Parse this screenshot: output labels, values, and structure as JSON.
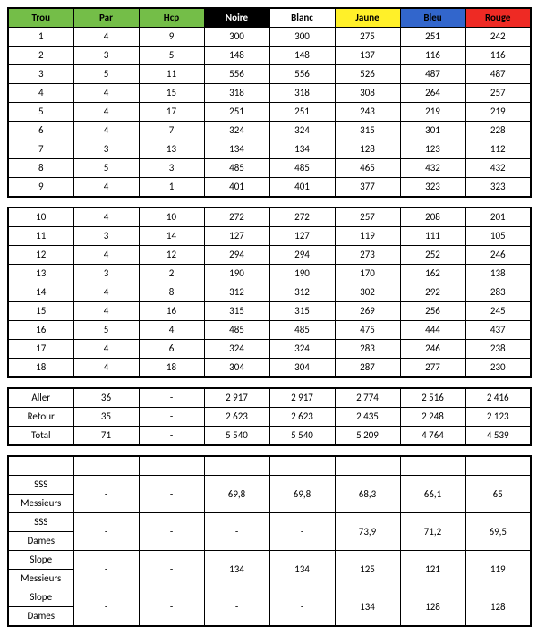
{
  "colors": {
    "green": "#74be48",
    "black": "#000000",
    "white": "#ffffff",
    "yellow": "#fff029",
    "blue": "#3266cc",
    "red": "#ee2a24"
  },
  "headers": {
    "trou": "Trou",
    "par": "Par",
    "hcp": "Hcp",
    "noire": "Noire",
    "blanc": "Blanc",
    "jaune": "Jaune",
    "bleu": "Bleu",
    "rouge": "Rouge"
  },
  "front9": [
    {
      "h": "1",
      "par": "4",
      "hcp": "9",
      "n": "300",
      "b": "300",
      "j": "275",
      "bl": "251",
      "r": "242"
    },
    {
      "h": "2",
      "par": "3",
      "hcp": "5",
      "n": "148",
      "b": "148",
      "j": "137",
      "bl": "116",
      "r": "116"
    },
    {
      "h": "3",
      "par": "5",
      "hcp": "11",
      "n": "556",
      "b": "556",
      "j": "526",
      "bl": "487",
      "r": "487"
    },
    {
      "h": "4",
      "par": "4",
      "hcp": "15",
      "n": "318",
      "b": "318",
      "j": "308",
      "bl": "264",
      "r": "257"
    },
    {
      "h": "5",
      "par": "4",
      "hcp": "17",
      "n": "251",
      "b": "251",
      "j": "243",
      "bl": "219",
      "r": "219"
    },
    {
      "h": "6",
      "par": "4",
      "hcp": "7",
      "n": "324",
      "b": "324",
      "j": "315",
      "bl": "301",
      "r": "228"
    },
    {
      "h": "7",
      "par": "3",
      "hcp": "13",
      "n": "134",
      "b": "134",
      "j": "128",
      "bl": "123",
      "r": "112"
    },
    {
      "h": "8",
      "par": "5",
      "hcp": "3",
      "n": "485",
      "b": "485",
      "j": "465",
      "bl": "432",
      "r": "432"
    },
    {
      "h": "9",
      "par": "4",
      "hcp": "1",
      "n": "401",
      "b": "401",
      "j": "377",
      "bl": "323",
      "r": "323"
    }
  ],
  "back9": [
    {
      "h": "10",
      "par": "4",
      "hcp": "10",
      "n": "272",
      "b": "272",
      "j": "257",
      "bl": "208",
      "r": "201"
    },
    {
      "h": "11",
      "par": "3",
      "hcp": "14",
      "n": "127",
      "b": "127",
      "j": "119",
      "bl": "111",
      "r": "105"
    },
    {
      "h": "12",
      "par": "4",
      "hcp": "12",
      "n": "294",
      "b": "294",
      "j": "273",
      "bl": "252",
      "r": "246"
    },
    {
      "h": "13",
      "par": "3",
      "hcp": "2",
      "n": "190",
      "b": "190",
      "j": "170",
      "bl": "162",
      "r": "138"
    },
    {
      "h": "14",
      "par": "4",
      "hcp": "8",
      "n": "312",
      "b": "312",
      "j": "302",
      "bl": "292",
      "r": "283"
    },
    {
      "h": "15",
      "par": "4",
      "hcp": "16",
      "n": "315",
      "b": "315",
      "j": "269",
      "bl": "256",
      "r": "245"
    },
    {
      "h": "16",
      "par": "5",
      "hcp": "4",
      "n": "485",
      "b": "485",
      "j": "475",
      "bl": "444",
      "r": "437"
    },
    {
      "h": "17",
      "par": "4",
      "hcp": "6",
      "n": "324",
      "b": "324",
      "j": "283",
      "bl": "246",
      "r": "238"
    },
    {
      "h": "18",
      "par": "4",
      "hcp": "18",
      "n": "304",
      "b": "304",
      "j": "287",
      "bl": "277",
      "r": "230"
    }
  ],
  "totals": [
    {
      "h": "Aller",
      "par": "36",
      "hcp": "-",
      "n": "2 917",
      "b": "2 917",
      "j": "2 774",
      "bl": "2 516",
      "r": "2 416"
    },
    {
      "h": "Retour",
      "par": "35",
      "hcp": "-",
      "n": "2 623",
      "b": "2 623",
      "j": "2 435",
      "bl": "2 248",
      "r": "2 123"
    },
    {
      "h": "Total",
      "par": "71",
      "hcp": "-",
      "n": "5 540",
      "b": "5 540",
      "j": "5 209",
      "bl": "4 764",
      "r": "4 539"
    }
  ],
  "stats": [
    {
      "l1": "SSS",
      "l2": "Messieurs",
      "par": "-",
      "hcp": "-",
      "n": "69,8",
      "b": "69,8",
      "j": "68,3",
      "bl": "66,1",
      "r": "65"
    },
    {
      "l1": "SSS",
      "l2": "Dames",
      "par": "-",
      "hcp": "-",
      "n": "-",
      "b": "-",
      "j": "73,9",
      "bl": "71,2",
      "r": "69,5"
    },
    {
      "l1": "Slope",
      "l2": "Messieurs",
      "par": "-",
      "hcp": "-",
      "n": "134",
      "b": "134",
      "j": "125",
      "bl": "121",
      "r": "119"
    },
    {
      "l1": "Slope",
      "l2": "Dames",
      "par": "-",
      "hcp": "-",
      "n": "-",
      "b": "-",
      "j": "134",
      "bl": "128",
      "r": "128"
    }
  ]
}
